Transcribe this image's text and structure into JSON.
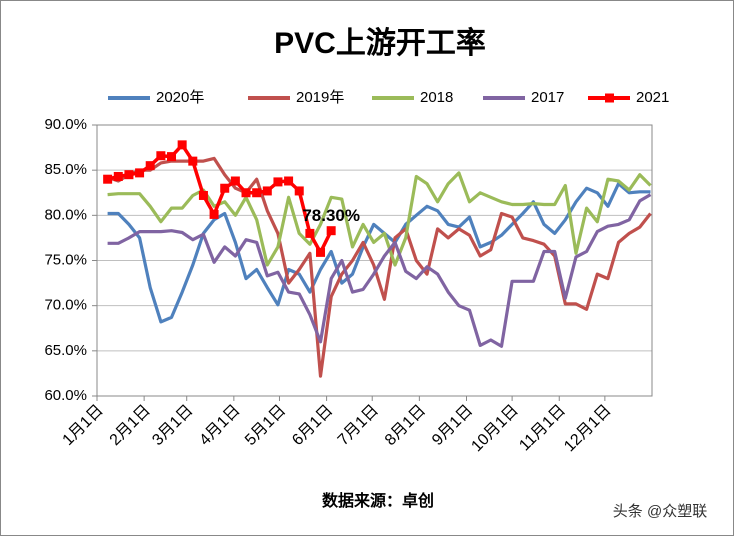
{
  "chart_data": {
    "type": "line",
    "title": "PVC上游开工率",
    "x_label": "数据来源：卓创",
    "watermark": "头条 @众塑联",
    "x": [
      7,
      14,
      21,
      28,
      35,
      42,
      49,
      56,
      63,
      70,
      77,
      84,
      91,
      98,
      105,
      112,
      119,
      126,
      133,
      140,
      147,
      154,
      161,
      168,
      175,
      182,
      189,
      196,
      203,
      210,
      217,
      224,
      231,
      238,
      245,
      252,
      259,
      266,
      273,
      280,
      287,
      294,
      301,
      308,
      315,
      322,
      329,
      336,
      343,
      350,
      357,
      364
    ],
    "xlim": [
      0,
      365
    ],
    "xticks": [
      {
        "value": 0,
        "label": "1月1日"
      },
      {
        "value": 31,
        "label": "2月1日"
      },
      {
        "value": 59,
        "label": "3月1日"
      },
      {
        "value": 90,
        "label": "4月1日"
      },
      {
        "value": 120,
        "label": "5月1日"
      },
      {
        "value": 151,
        "label": "6月1日"
      },
      {
        "value": 181,
        "label": "7月1日"
      },
      {
        "value": 212,
        "label": "8月1日"
      },
      {
        "value": 243,
        "label": "9月1日"
      },
      {
        "value": 273,
        "label": "10月1日"
      },
      {
        "value": 304,
        "label": "11月1日"
      },
      {
        "value": 334,
        "label": "12月1日"
      }
    ],
    "ylim": [
      60,
      90
    ],
    "yticks": [
      {
        "value": 60,
        "label": "60.0%"
      },
      {
        "value": 65,
        "label": "65.0%"
      },
      {
        "value": 70,
        "label": "70.0%"
      },
      {
        "value": 75,
        "label": "75.0%"
      },
      {
        "value": 80,
        "label": "80.0%"
      },
      {
        "value": 85,
        "label": "85.0%"
      },
      {
        "value": 90,
        "label": "90.0%"
      }
    ],
    "grid": true,
    "legend": "top",
    "series": [
      {
        "name": "2020年",
        "color": "#4f81bd",
        "values": [
          80.2,
          80.2,
          79.0,
          77.5,
          72.0,
          68.2,
          68.7,
          71.5,
          74.5,
          78.0,
          79.5,
          80.2,
          77.0,
          73.0,
          74.0,
          72.0,
          70.1,
          74.0,
          73.5,
          71.5,
          74.0,
          76.0,
          72.5,
          73.5,
          76.5,
          79.0,
          78.0,
          77.0,
          79.0,
          80.0,
          81.0,
          80.5,
          79.0,
          78.7,
          79.8,
          76.5,
          77.0,
          77.8,
          79.0,
          80.2,
          81.5,
          79.0,
          78.0,
          79.5,
          81.5,
          83.0,
          82.5,
          81.0,
          83.5,
          82.5,
          82.6,
          82.6
        ]
      },
      {
        "name": "2019年",
        "color": "#c0504d",
        "values": [
          84.2,
          83.8,
          84.5,
          85.0,
          85.0,
          85.8,
          86.0,
          86.0,
          86.0,
          86.0,
          86.3,
          84.5,
          83.0,
          82.5,
          84.0,
          80.5,
          78.0,
          72.5,
          74.0,
          75.8,
          62.2,
          71.0,
          73.5,
          75.0,
          77.0,
          74.5,
          70.7,
          77.5,
          78.5,
          75.0,
          73.5,
          78.5,
          77.5,
          78.5,
          77.8,
          75.5,
          76.2,
          80.2,
          79.8,
          77.5,
          77.2,
          76.8,
          75.5,
          70.2,
          70.2,
          69.6,
          73.5,
          73.0,
          77.0,
          78.0,
          78.7,
          80.2
        ]
      },
      {
        "name": "2018",
        "color": "#9bbb59",
        "values": [
          82.3,
          82.4,
          82.4,
          82.4,
          81.0,
          79.3,
          80.8,
          80.8,
          82.2,
          82.8,
          81.0,
          81.5,
          80.0,
          82.0,
          79.5,
          74.5,
          76.5,
          82.0,
          78.0,
          76.8,
          79.0,
          82.0,
          81.8,
          76.5,
          79.0,
          77.0,
          78.0,
          74.5,
          77.5,
          84.3,
          83.5,
          81.5,
          83.5,
          84.7,
          81.5,
          82.5,
          82.0,
          81.5,
          81.2,
          81.2,
          81.3,
          81.2,
          81.2,
          83.3,
          75.8,
          80.8,
          79.3,
          84.0,
          83.8,
          82.8,
          84.5,
          83.3
        ]
      },
      {
        "name": "2017",
        "color": "#8064a2",
        "values": [
          76.9,
          76.9,
          77.5,
          78.2,
          78.2,
          78.2,
          78.3,
          78.1,
          77.3,
          77.9,
          74.8,
          76.5,
          75.5,
          77.3,
          77.0,
          73.3,
          73.7,
          71.5,
          71.3,
          69.0,
          66.0,
          73.0,
          75.0,
          71.5,
          71.8,
          73.5,
          75.5,
          77.0,
          73.8,
          73.0,
          74.3,
          73.5,
          71.5,
          70.0,
          69.5,
          65.6,
          66.2,
          65.5,
          72.7,
          72.7,
          72.7,
          76.0,
          76.0,
          70.8,
          75.4,
          76.0,
          78.2,
          78.8,
          79.0,
          79.5,
          81.6,
          82.3
        ]
      },
      {
        "name": "2021",
        "color": "#ff0000",
        "marker": "square",
        "values": [
          84.0,
          84.3,
          84.5,
          84.7,
          85.5,
          86.6,
          86.5,
          87.8,
          86.0,
          82.2,
          80.1,
          83.0,
          83.8,
          82.5,
          82.5,
          82.7,
          83.7,
          83.8,
          82.7,
          78.0,
          75.9,
          78.3,
          null,
          null,
          null,
          null,
          null,
          null,
          null,
          null,
          null,
          null,
          null,
          null,
          null,
          null,
          null,
          null,
          null,
          null,
          null,
          null,
          null,
          null,
          null,
          null,
          null,
          null,
          null,
          null,
          null,
          null
        ],
        "value_labels": [
          null,
          null,
          null,
          null,
          null,
          null,
          null,
          null,
          null,
          null,
          null,
          null,
          null,
          null,
          null,
          null,
          null,
          null,
          null,
          null,
          null,
          "78.30%",
          null,
          null,
          null,
          null,
          null,
          null,
          null,
          null,
          null,
          null,
          null,
          null,
          null,
          null,
          null,
          null,
          null,
          null,
          null,
          null,
          null,
          null,
          null,
          null,
          null,
          null,
          null,
          null,
          null,
          null
        ]
      }
    ]
  }
}
